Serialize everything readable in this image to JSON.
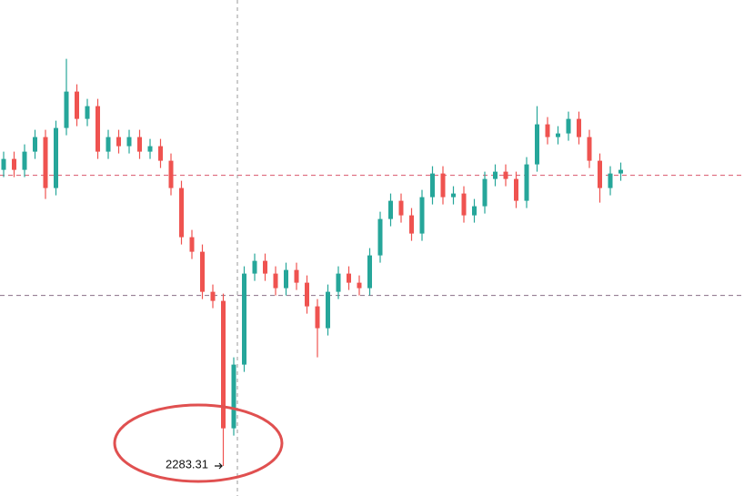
{
  "chart_data": {
    "type": "candlestick",
    "categories": [
      null,
      null,
      null,
      null,
      null,
      null,
      null,
      null,
      null,
      null,
      null,
      null,
      null,
      null,
      null,
      null,
      null,
      null,
      null,
      null,
      null,
      null,
      null,
      null,
      null,
      null,
      null,
      null,
      null,
      null,
      null,
      null,
      null,
      null,
      null,
      null,
      null,
      null,
      null,
      null,
      null,
      null,
      null,
      null,
      null,
      null,
      null,
      null,
      null,
      null,
      null,
      null,
      null,
      null,
      null,
      null,
      null,
      null,
      null,
      null
    ],
    "open": [
      2446,
      2452,
      2446,
      2456,
      2464,
      2436,
      2469,
      2489,
      2474,
      2481,
      2456,
      2464,
      2459,
      2464,
      2456,
      2459,
      2451,
      2436,
      2409,
      2401,
      2379,
      2374,
      2304,
      2339,
      2389,
      2396,
      2389,
      2381,
      2391,
      2384,
      2371,
      2359,
      2379,
      2389,
      2384,
      2381,
      2399,
      2419,
      2429,
      2421,
      2411,
      2431,
      2444,
      2431,
      2433,
      2421,
      2426,
      2441,
      2445,
      2441,
      2429,
      2449,
      2471,
      2464,
      2466,
      2474,
      2464,
      2451,
      2436,
      2444
    ],
    "high": [
      2456,
      2456,
      2460,
      2468,
      2468,
      2473,
      2507,
      2493,
      2485,
      2485,
      2468,
      2468,
      2468,
      2468,
      2463,
      2463,
      2455,
      2440,
      2413,
      2405,
      2383,
      2378,
      2343,
      2393,
      2400,
      2400,
      2393,
      2395,
      2395,
      2388,
      2375,
      2383,
      2393,
      2393,
      2388,
      2403,
      2423,
      2433,
      2433,
      2425,
      2435,
      2448,
      2448,
      2437,
      2437,
      2430,
      2445,
      2449,
      2449,
      2445,
      2453,
      2481,
      2475,
      2470,
      2478,
      2478,
      2468,
      2455,
      2448,
      2450
    ],
    "low": [
      2442,
      2442,
      2442,
      2452,
      2430,
      2432,
      2465,
      2470,
      2470,
      2452,
      2452,
      2455,
      2455,
      2452,
      2452,
      2447,
      2432,
      2405,
      2397,
      2375,
      2370,
      2283.31,
      2300,
      2335,
      2385,
      2385,
      2377,
      2377,
      2380,
      2367,
      2343,
      2355,
      2375,
      2380,
      2377,
      2377,
      2395,
      2415,
      2417,
      2407,
      2407,
      2427,
      2427,
      2427,
      2417,
      2417,
      2422,
      2437,
      2437,
      2425,
      2425,
      2445,
      2460,
      2460,
      2462,
      2460,
      2447,
      2428,
      2432,
      2440
    ],
    "close": [
      2452,
      2446,
      2456,
      2464,
      2436,
      2469,
      2489,
      2474,
      2481,
      2456,
      2464,
      2459,
      2464,
      2456,
      2459,
      2451,
      2436,
      2409,
      2401,
      2379,
      2374,
      2304,
      2339,
      2389,
      2396,
      2389,
      2381,
      2391,
      2384,
      2371,
      2359,
      2379,
      2389,
      2384,
      2381,
      2399,
      2419,
      2429,
      2421,
      2411,
      2431,
      2444,
      2431,
      2433,
      2421,
      2426,
      2441,
      2445,
      2441,
      2429,
      2449,
      2471,
      2464,
      2466,
      2474,
      2464,
      2451,
      2436,
      2444,
      2446
    ],
    "up_color": "#26a69a",
    "down_color": "#ef5350",
    "ylim": [
      2266.81,
      2539.31
    ],
    "hlines": [
      {
        "value": 2443,
        "color": "#d9546a"
      },
      {
        "value": 2377,
        "color": "#8a6f86"
      }
    ],
    "annotation": {
      "value": 2283.31
    }
  }
}
